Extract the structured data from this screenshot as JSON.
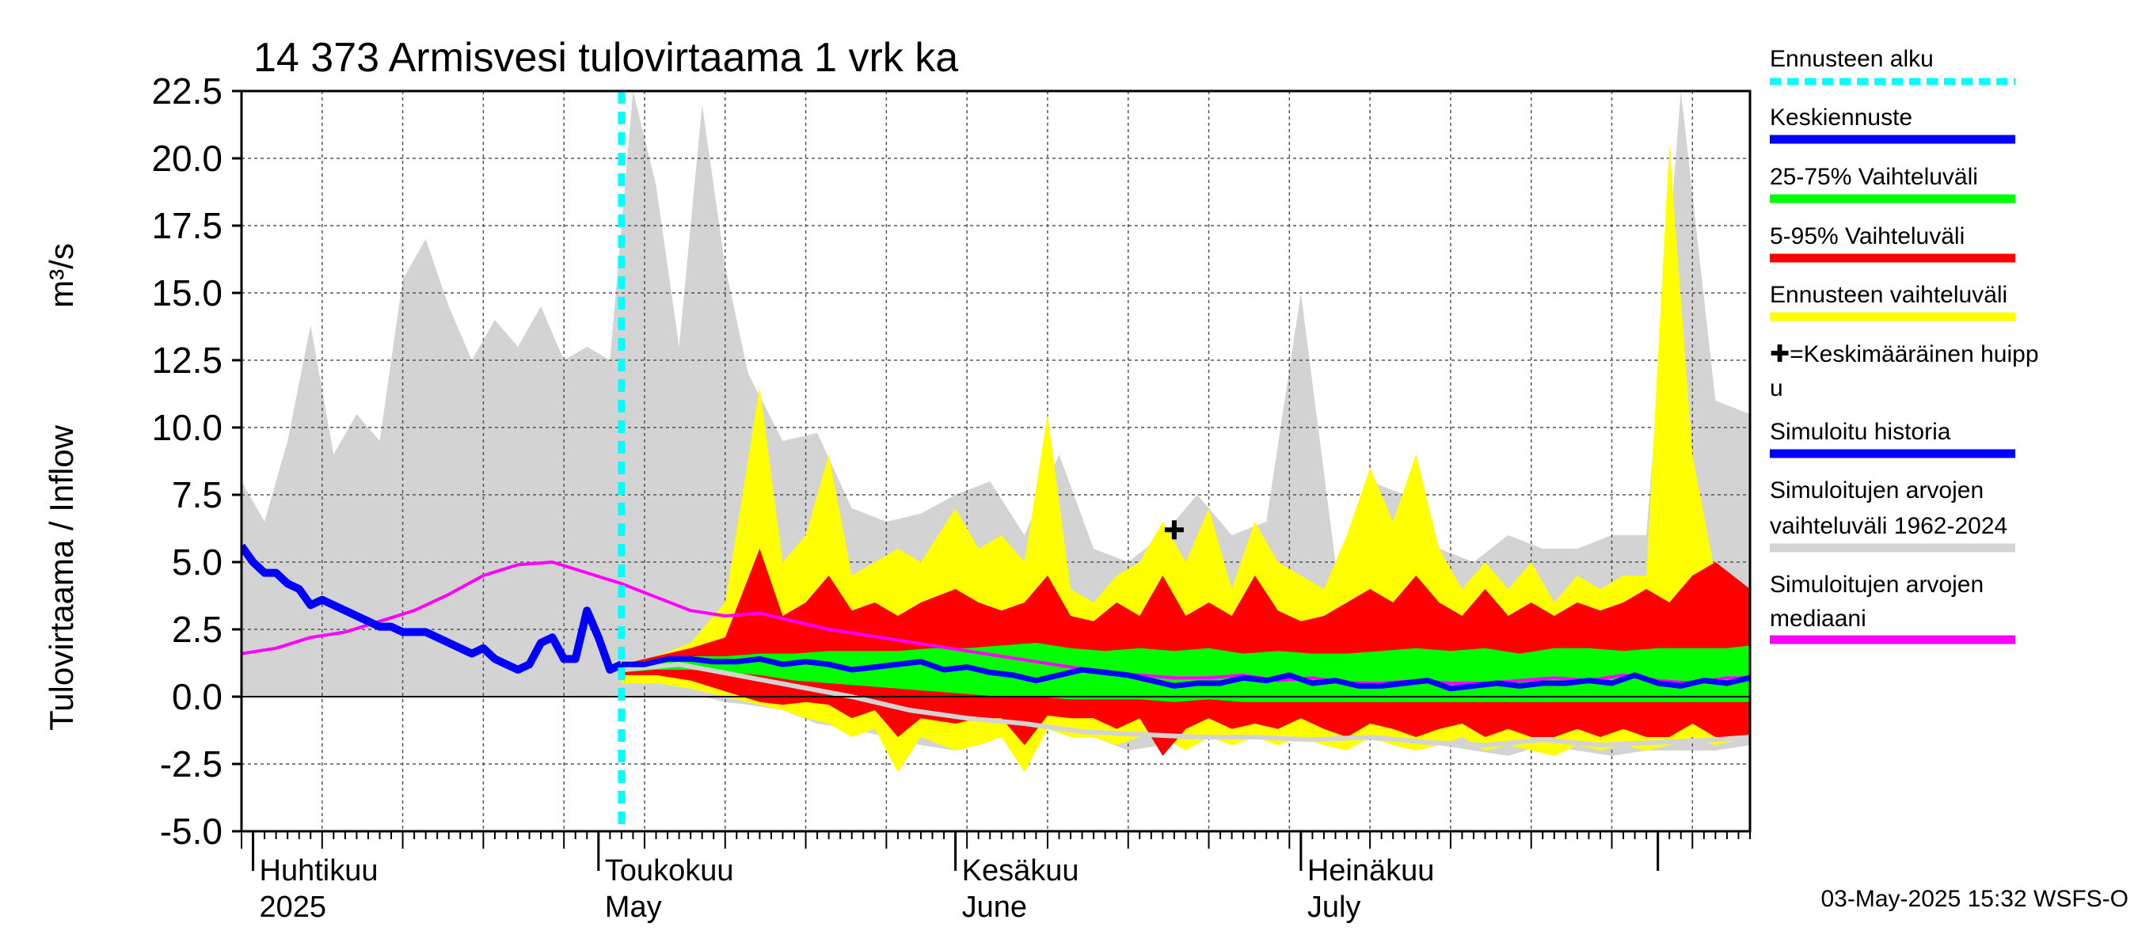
{
  "chart_data": {
    "type": "area",
    "title": "14 373 Armisvesi tulovirtaama 1 vrk ka",
    "ylabel_left": "Tulovirtaama / Inflow",
    "ylabel_unit": "m³/s",
    "ylim": [
      -5.0,
      22.5
    ],
    "yticks": [
      "-5.0",
      "-2.5",
      "0.0",
      "2.5",
      "5.0",
      "7.5",
      "10.0",
      "12.5",
      "15.0",
      "17.5",
      "20.0",
      "22.5"
    ],
    "ytick_values": [
      -5.0,
      -2.5,
      0.0,
      2.5,
      5.0,
      7.5,
      10.0,
      12.5,
      15.0,
      17.5,
      20.0,
      22.5
    ],
    "x_start": "2025-03-31",
    "x_end": "2025-08-09",
    "forecast_start": "2025-05-03",
    "month_labels": [
      {
        "date": "2025-04-01",
        "fi": "Huhtikuu",
        "en": "2025"
      },
      {
        "date": "2025-05-01",
        "fi": "Toukokuu",
        "en": "May"
      },
      {
        "date": "2025-06-01",
        "fi": "Kesäkuu",
        "en": "June"
      },
      {
        "date": "2025-07-01",
        "fi": "Heinäkuu",
        "en": "July"
      }
    ],
    "footer": "03-May-2025 15:32 WSFS-O",
    "grid": true,
    "legend_placement": "right",
    "mean_peak": {
      "date": "2025-06-20",
      "value": 6.2
    },
    "series": {
      "hist_range": {
        "name": "Simuloitujen arvojen vaihteluväli 1962-2024",
        "color": "#d3d3d3",
        "x": [
          "2025-03-31",
          "2025-04-02",
          "2025-04-04",
          "2025-04-06",
          "2025-04-08",
          "2025-04-10",
          "2025-04-12",
          "2025-04-14",
          "2025-04-16",
          "2025-04-18",
          "2025-04-20",
          "2025-04-22",
          "2025-04-24",
          "2025-04-26",
          "2025-04-28",
          "2025-04-30",
          "2025-05-02",
          "2025-05-04",
          "2025-05-06",
          "2025-05-08",
          "2025-05-10",
          "2025-05-12",
          "2025-05-14",
          "2025-05-17",
          "2025-05-20",
          "2025-05-23",
          "2025-05-26",
          "2025-05-29",
          "2025-06-01",
          "2025-06-04",
          "2025-06-07",
          "2025-06-10",
          "2025-06-13",
          "2025-06-16",
          "2025-06-19",
          "2025-06-22",
          "2025-06-25",
          "2025-06-28",
          "2025-07-01",
          "2025-07-04",
          "2025-07-07",
          "2025-07-10",
          "2025-07-13",
          "2025-07-16",
          "2025-07-19",
          "2025-07-22",
          "2025-07-25",
          "2025-07-28",
          "2025-07-31",
          "2025-08-03",
          "2025-08-06",
          "2025-08-09"
        ],
        "upper": [
          8.0,
          6.5,
          9.5,
          13.8,
          9.0,
          10.5,
          9.5,
          15.5,
          17.0,
          14.5,
          12.5,
          14.0,
          13.0,
          14.5,
          12.5,
          13.0,
          12.5,
          22.5,
          19.0,
          13.0,
          22.0,
          16.0,
          12.0,
          9.5,
          9.8,
          7.0,
          6.5,
          6.8,
          7.5,
          8.0,
          6.0,
          9.0,
          5.5,
          5.0,
          6.0,
          7.5,
          6.0,
          6.5,
          15.0,
          5.0,
          8.0,
          7.5,
          5.5,
          5.0,
          6.0,
          5.5,
          5.5,
          6.0,
          6.0,
          22.5,
          11.0,
          10.5
        ],
        "lower": [
          0.0,
          0.0,
          0.0,
          0.0,
          0.0,
          0.0,
          0.0,
          0.0,
          0.0,
          0.0,
          0.0,
          0.0,
          0.0,
          0.0,
          0.0,
          0.0,
          0.0,
          0.0,
          0.0,
          0.0,
          0.0,
          -0.2,
          -0.3,
          -0.5,
          -1.0,
          -1.2,
          -1.5,
          -1.8,
          -2.0,
          -1.5,
          -1.2,
          -1.0,
          -1.5,
          -2.0,
          -1.8,
          -1.5,
          -1.2,
          -1.5,
          -1.5,
          -1.8,
          -1.6,
          -1.8,
          -1.8,
          -2.0,
          -2.2,
          -1.8,
          -2.0,
          -2.2,
          -2.0,
          -2.0,
          -2.0,
          -1.8
        ]
      },
      "forecast_range": {
        "name": "Ennusteen vaihteluväli",
        "color": "#ffff00",
        "x": [
          "2025-05-03",
          "2025-05-06",
          "2025-05-09",
          "2025-05-12",
          "2025-05-15",
          "2025-05-17",
          "2025-05-19",
          "2025-05-21",
          "2025-05-23",
          "2025-05-25",
          "2025-05-27",
          "2025-05-29",
          "2025-06-01",
          "2025-06-03",
          "2025-06-05",
          "2025-06-07",
          "2025-06-09",
          "2025-06-11",
          "2025-06-13",
          "2025-06-15",
          "2025-06-17",
          "2025-06-19",
          "2025-06-21",
          "2025-06-23",
          "2025-06-25",
          "2025-06-27",
          "2025-06-29",
          "2025-07-01",
          "2025-07-03",
          "2025-07-05",
          "2025-07-07",
          "2025-07-09",
          "2025-07-11",
          "2025-07-13",
          "2025-07-15",
          "2025-07-17",
          "2025-07-19",
          "2025-07-21",
          "2025-07-23",
          "2025-07-25",
          "2025-07-27",
          "2025-07-29",
          "2025-07-31",
          "2025-08-02",
          "2025-08-04",
          "2025-08-06",
          "2025-08-09"
        ],
        "upper": [
          1.0,
          1.5,
          2.0,
          3.5,
          11.5,
          5.0,
          6.0,
          9.0,
          4.5,
          5.0,
          5.5,
          5.0,
          7.0,
          5.5,
          6.0,
          5.0,
          10.5,
          4.0,
          3.5,
          4.5,
          5.0,
          6.5,
          5.0,
          7.0,
          4.0,
          6.5,
          5.0,
          4.5,
          4.0,
          6.0,
          8.5,
          6.5,
          9.0,
          5.5,
          4.0,
          5.0,
          4.0,
          5.0,
          3.5,
          4.5,
          4.0,
          4.5,
          4.5,
          20.5,
          9.0,
          4.5,
          4.0
        ],
        "lower": [
          0.5,
          0.5,
          0.3,
          0.0,
          -0.3,
          -0.5,
          -0.8,
          -1.0,
          -1.5,
          -1.2,
          -2.8,
          -1.5,
          -2.0,
          -1.8,
          -1.5,
          -2.8,
          -1.2,
          -1.5,
          -1.5,
          -1.8,
          -1.5,
          -1.5,
          -2.0,
          -1.5,
          -1.8,
          -1.5,
          -1.8,
          -1.5,
          -1.8,
          -2.0,
          -1.5,
          -1.8,
          -2.0,
          -1.8,
          -1.5,
          -2.0,
          -1.8,
          -2.0,
          -2.2,
          -1.8,
          -2.0,
          -1.8,
          -2.0,
          -1.8,
          -1.5,
          -1.8,
          -1.5
        ]
      },
      "p5_95": {
        "name": "5-95% Vaihteluväli",
        "color": "#ff0000",
        "x": [
          "2025-05-03",
          "2025-05-06",
          "2025-05-09",
          "2025-05-12",
          "2025-05-15",
          "2025-05-17",
          "2025-05-19",
          "2025-05-21",
          "2025-05-23",
          "2025-05-25",
          "2025-05-27",
          "2025-05-29",
          "2025-06-01",
          "2025-06-03",
          "2025-06-05",
          "2025-06-07",
          "2025-06-09",
          "2025-06-11",
          "2025-06-13",
          "2025-06-15",
          "2025-06-17",
          "2025-06-19",
          "2025-06-21",
          "2025-06-23",
          "2025-06-25",
          "2025-06-27",
          "2025-06-29",
          "2025-07-01",
          "2025-07-03",
          "2025-07-05",
          "2025-07-07",
          "2025-07-09",
          "2025-07-11",
          "2025-07-13",
          "2025-07-15",
          "2025-07-17",
          "2025-07-19",
          "2025-07-21",
          "2025-07-23",
          "2025-07-25",
          "2025-07-27",
          "2025-07-29",
          "2025-07-31",
          "2025-08-02",
          "2025-08-04",
          "2025-08-06",
          "2025-08-09"
        ],
        "upper": [
          1.2,
          1.5,
          1.8,
          2.2,
          5.5,
          3.0,
          3.5,
          4.5,
          3.2,
          3.5,
          3.0,
          3.5,
          4.0,
          3.5,
          3.2,
          3.5,
          4.5,
          3.0,
          2.8,
          3.5,
          3.0,
          4.5,
          3.0,
          3.5,
          3.0,
          4.5,
          3.2,
          2.8,
          3.0,
          3.5,
          4.0,
          3.5,
          4.5,
          3.5,
          3.0,
          4.0,
          3.0,
          3.5,
          3.0,
          3.5,
          3.2,
          3.5,
          4.0,
          3.5,
          4.5,
          5.0,
          4.0
        ],
        "lower": [
          0.8,
          0.8,
          0.6,
          0.2,
          -0.2,
          -0.3,
          -0.2,
          -0.3,
          -0.8,
          -0.5,
          -1.5,
          -0.8,
          -1.0,
          -0.8,
          -0.8,
          -1.8,
          -0.7,
          -0.8,
          -0.8,
          -1.2,
          -0.8,
          -2.2,
          -1.2,
          -0.8,
          -1.2,
          -1.0,
          -1.2,
          -0.8,
          -1.2,
          -1.5,
          -1.0,
          -1.2,
          -1.5,
          -1.2,
          -1.0,
          -1.5,
          -1.2,
          -1.5,
          -1.5,
          -1.2,
          -1.5,
          -1.2,
          -1.5,
          -1.5,
          -1.0,
          -1.5,
          -1.5
        ]
      },
      "p25_75": {
        "name": "25-75% Vaihteluväli",
        "color": "#00ff00",
        "x": [
          "2025-05-03",
          "2025-05-06",
          "2025-05-09",
          "2025-05-12",
          "2025-05-15",
          "2025-05-18",
          "2025-05-21",
          "2025-05-24",
          "2025-05-27",
          "2025-05-30",
          "2025-06-02",
          "2025-06-05",
          "2025-06-08",
          "2025-06-11",
          "2025-06-14",
          "2025-06-17",
          "2025-06-20",
          "2025-06-23",
          "2025-06-26",
          "2025-06-29",
          "2025-07-02",
          "2025-07-05",
          "2025-07-08",
          "2025-07-11",
          "2025-07-14",
          "2025-07-17",
          "2025-07-20",
          "2025-07-23",
          "2025-07-26",
          "2025-07-29",
          "2025-08-01",
          "2025-08-04",
          "2025-08-07",
          "2025-08-09"
        ],
        "upper": [
          1.1,
          1.3,
          1.5,
          1.5,
          1.6,
          1.6,
          1.7,
          1.7,
          1.7,
          1.8,
          1.8,
          1.9,
          2.0,
          1.8,
          1.7,
          1.8,
          1.7,
          1.8,
          1.6,
          1.7,
          1.6,
          1.6,
          1.7,
          1.8,
          1.7,
          1.8,
          1.6,
          1.8,
          1.8,
          1.7,
          1.8,
          1.8,
          1.8,
          1.9
        ],
        "lower": [
          0.9,
          1.0,
          1.0,
          0.9,
          0.8,
          0.6,
          0.5,
          0.4,
          0.3,
          0.2,
          0.1,
          0.0,
          0.0,
          -0.1,
          -0.1,
          -0.1,
          -0.2,
          -0.1,
          -0.2,
          -0.2,
          -0.2,
          -0.2,
          -0.2,
          -0.2,
          -0.2,
          -0.2,
          -0.2,
          -0.2,
          -0.2,
          -0.2,
          -0.2,
          -0.2,
          -0.2,
          -0.2
        ]
      },
      "mean_forecast": {
        "name": "Keskiennuste",
        "color": "#0000ff",
        "x": [
          "2025-05-03",
          "2025-05-05",
          "2025-05-07",
          "2025-05-09",
          "2025-05-11",
          "2025-05-13",
          "2025-05-15",
          "2025-05-17",
          "2025-05-19",
          "2025-05-21",
          "2025-05-23",
          "2025-05-25",
          "2025-05-27",
          "2025-05-29",
          "2025-05-31",
          "2025-06-02",
          "2025-06-04",
          "2025-06-06",
          "2025-06-08",
          "2025-06-10",
          "2025-06-12",
          "2025-06-14",
          "2025-06-16",
          "2025-06-18",
          "2025-06-20",
          "2025-06-22",
          "2025-06-24",
          "2025-06-26",
          "2025-06-28",
          "2025-06-30",
          "2025-07-02",
          "2025-07-04",
          "2025-07-06",
          "2025-07-08",
          "2025-07-10",
          "2025-07-12",
          "2025-07-14",
          "2025-07-16",
          "2025-07-18",
          "2025-07-20",
          "2025-07-22",
          "2025-07-24",
          "2025-07-26",
          "2025-07-28",
          "2025-07-30",
          "2025-08-01",
          "2025-08-03",
          "2025-08-05",
          "2025-08-07",
          "2025-08-09"
        ],
        "values": [
          1.2,
          1.2,
          1.4,
          1.4,
          1.3,
          1.3,
          1.4,
          1.2,
          1.3,
          1.2,
          1.0,
          1.1,
          1.2,
          1.3,
          1.0,
          1.1,
          0.9,
          0.8,
          0.6,
          0.8,
          1.0,
          0.9,
          0.8,
          0.6,
          0.4,
          0.5,
          0.5,
          0.7,
          0.6,
          0.8,
          0.5,
          0.6,
          0.4,
          0.4,
          0.5,
          0.6,
          0.3,
          0.4,
          0.5,
          0.4,
          0.5,
          0.5,
          0.6,
          0.5,
          0.8,
          0.5,
          0.4,
          0.6,
          0.5,
          0.7
        ]
      },
      "sim_history": {
        "name": "Simuloitu historia",
        "color": "#0000ff",
        "x": [
          "2025-03-31",
          "2025-04-01",
          "2025-04-02",
          "2025-04-03",
          "2025-04-04",
          "2025-04-05",
          "2025-04-06",
          "2025-04-07",
          "2025-04-08",
          "2025-04-09",
          "2025-04-10",
          "2025-04-11",
          "2025-04-12",
          "2025-04-13",
          "2025-04-14",
          "2025-04-15",
          "2025-04-16",
          "2025-04-17",
          "2025-04-18",
          "2025-04-19",
          "2025-04-20",
          "2025-04-21",
          "2025-04-22",
          "2025-04-23",
          "2025-04-24",
          "2025-04-25",
          "2025-04-26",
          "2025-04-27",
          "2025-04-28",
          "2025-04-29",
          "2025-04-30",
          "2025-05-01",
          "2025-05-02",
          "2025-05-03"
        ],
        "values": [
          5.6,
          5.0,
          4.6,
          4.6,
          4.2,
          4.0,
          3.4,
          3.6,
          3.4,
          3.2,
          3.0,
          2.8,
          2.6,
          2.6,
          2.4,
          2.4,
          2.4,
          2.2,
          2.0,
          1.8,
          1.6,
          1.8,
          1.4,
          1.2,
          1.0,
          1.2,
          2.0,
          2.2,
          1.4,
          1.4,
          3.2,
          2.2,
          1.0,
          1.2
        ]
      },
      "sim_median": {
        "name": "Simuloitujen arvojen mediaani",
        "color": "#ff00ff",
        "x": [
          "2025-03-31",
          "2025-04-03",
          "2025-04-06",
          "2025-04-09",
          "2025-04-12",
          "2025-04-15",
          "2025-04-18",
          "2025-04-21",
          "2025-04-24",
          "2025-04-27",
          "2025-04-30",
          "2025-05-03",
          "2025-05-06",
          "2025-05-09",
          "2025-05-12",
          "2025-05-15",
          "2025-05-18",
          "2025-05-21",
          "2025-05-24",
          "2025-05-27",
          "2025-05-30",
          "2025-06-02",
          "2025-06-05",
          "2025-06-08",
          "2025-06-11",
          "2025-06-14",
          "2025-06-17",
          "2025-06-20",
          "2025-06-23",
          "2025-06-26",
          "2025-06-29",
          "2025-07-02",
          "2025-07-05",
          "2025-07-08",
          "2025-07-11",
          "2025-07-14",
          "2025-07-17",
          "2025-07-20",
          "2025-07-23",
          "2025-07-26",
          "2025-07-29",
          "2025-08-01",
          "2025-08-04",
          "2025-08-07",
          "2025-08-09"
        ],
        "values": [
          1.6,
          1.8,
          2.2,
          2.4,
          2.8,
          3.2,
          3.8,
          4.5,
          4.9,
          5.0,
          4.6,
          4.2,
          3.7,
          3.2,
          3.0,
          3.1,
          2.8,
          2.5,
          2.3,
          2.1,
          1.9,
          1.7,
          1.5,
          1.3,
          1.1,
          0.9,
          0.8,
          0.7,
          0.7,
          0.8,
          0.6,
          0.7,
          0.5,
          0.5,
          0.6,
          0.5,
          0.5,
          0.6,
          0.7,
          0.6,
          0.8,
          0.6,
          0.5,
          0.7,
          0.7
        ]
      },
      "low_gray_line": {
        "color": "#d3d3d3",
        "x": [
          "2025-05-03",
          "2025-05-08",
          "2025-05-13",
          "2025-05-18",
          "2025-05-23",
          "2025-05-28",
          "2025-06-02",
          "2025-06-07",
          "2025-06-12",
          "2025-06-17",
          "2025-06-22",
          "2025-06-27",
          "2025-07-02",
          "2025-07-07",
          "2025-07-12",
          "2025-07-17",
          "2025-07-22",
          "2025-07-27",
          "2025-08-01",
          "2025-08-06",
          "2025-08-09"
        ],
        "values": [
          1.0,
          1.2,
          0.8,
          0.4,
          0.0,
          -0.5,
          -0.8,
          -1.0,
          -1.3,
          -1.4,
          -1.5,
          -1.5,
          -1.6,
          -1.5,
          -1.7,
          -1.8,
          -1.6,
          -1.8,
          -1.7,
          -1.6,
          -1.5
        ]
      }
    }
  },
  "legend": {
    "items": [
      {
        "label": "Ennusteen alku",
        "color": "#00ffff",
        "style": "dashed"
      },
      {
        "label": "Keskiennuste",
        "color": "#0000ff",
        "style": "line"
      },
      {
        "label": "25-75% Vaihteluväli",
        "color": "#00ff00",
        "style": "line"
      },
      {
        "label": "5-95% Vaihteluväli",
        "color": "#ff0000",
        "style": "line"
      },
      {
        "label": "Ennusteen vaihteluväli",
        "color": "#ffff00",
        "style": "line"
      },
      {
        "label": "✚=Keskimääräinen huipp u",
        "color": "",
        "style": "none"
      },
      {
        "label": "Simuloitu historia",
        "color": "#0000ff",
        "style": "line"
      },
      {
        "label": "Simuloitujen arvojen vaihteluväli 1962-2024",
        "color": "#d3d3d3",
        "style": "line"
      },
      {
        "label": "Simuloitujen arvojen mediaani",
        "color": "#ff00ff",
        "style": "line"
      }
    ]
  }
}
